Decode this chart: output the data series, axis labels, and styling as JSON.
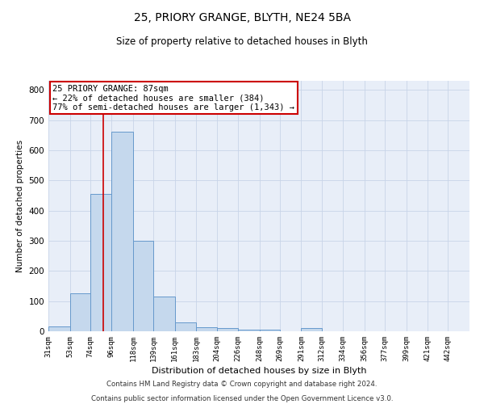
{
  "title1": "25, PRIORY GRANGE, BLYTH, NE24 5BA",
  "title2": "Size of property relative to detached houses in Blyth",
  "xlabel": "Distribution of detached houses by size in Blyth",
  "ylabel": "Number of detached properties",
  "footer1": "Contains HM Land Registry data © Crown copyright and database right 2024.",
  "footer2": "Contains public sector information licensed under the Open Government Licence v3.0.",
  "bar_edges": [
    31,
    53,
    74,
    96,
    118,
    139,
    161,
    183,
    204,
    226,
    248,
    269,
    291,
    312,
    334,
    356,
    377,
    399,
    421,
    442,
    464
  ],
  "bar_heights": [
    15,
    125,
    455,
    660,
    300,
    115,
    30,
    13,
    10,
    5,
    5,
    0,
    10,
    0,
    0,
    0,
    0,
    0,
    0,
    0
  ],
  "bar_color": "#c5d8ed",
  "bar_edge_color": "#6699cc",
  "grid_color": "#c8d4e8",
  "bg_color": "#e8eef8",
  "red_line_x": 87,
  "annotation_line1": "25 PRIORY GRANGE: 87sqm",
  "annotation_line2": "← 22% of detached houses are smaller (384)",
  "annotation_line3": "77% of semi-detached houses are larger (1,343) →",
  "annotation_box_color": "#cc0000",
  "ylim": [
    0,
    830
  ],
  "yticks": [
    0,
    100,
    200,
    300,
    400,
    500,
    600,
    700,
    800
  ]
}
